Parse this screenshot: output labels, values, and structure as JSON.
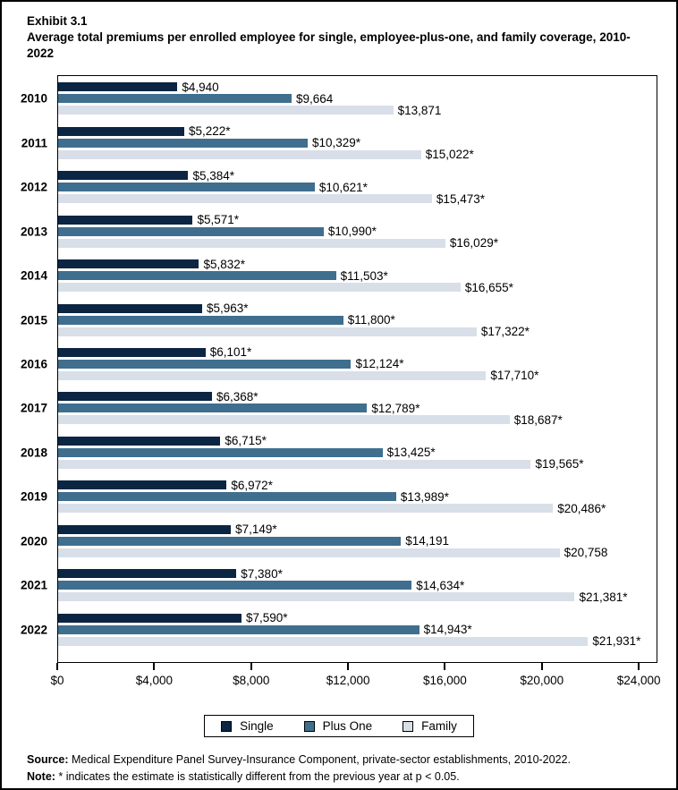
{
  "title": {
    "exhibit": "Exhibit 3.1",
    "text": "Average total premiums per enrolled employee for single, employee-plus-one, and family coverage, 2010-2022"
  },
  "chart_data": {
    "type": "bar",
    "orientation": "horizontal",
    "title": "Average total premiums per enrolled employee for single, employee-plus-one, and family coverage, 2010-2022",
    "categories": [
      "2010",
      "2011",
      "2012",
      "2013",
      "2014",
      "2015",
      "2016",
      "2017",
      "2018",
      "2019",
      "2020",
      "2021",
      "2022"
    ],
    "series": [
      {
        "name": "Single",
        "color": "#0b2543",
        "values": [
          4940,
          5222,
          5384,
          5571,
          5832,
          5963,
          6101,
          6368,
          6715,
          6972,
          7149,
          7380,
          7590
        ],
        "labels": [
          "$4,940",
          "$5,222*",
          "$5,384*",
          "$5,571*",
          "$5,832*",
          "$5,963*",
          "$6,101*",
          "$6,368*",
          "$6,715*",
          "$6,972*",
          "$7,149*",
          "$7,380*",
          "$7,590*"
        ]
      },
      {
        "name": "Plus One",
        "color": "#406e8e",
        "values": [
          9664,
          10329,
          10621,
          10990,
          11503,
          11800,
          12124,
          12789,
          13425,
          13989,
          14191,
          14634,
          14943
        ],
        "labels": [
          "$9,664",
          "$10,329*",
          "$10,621*",
          "$10,990*",
          "$11,503*",
          "$11,800*",
          "$12,124*",
          "$12,789*",
          "$13,425*",
          "$13,989*",
          "$14,191",
          "$14,634*",
          "$14,943*"
        ]
      },
      {
        "name": "Family",
        "color": "#d8dfe8",
        "values": [
          13871,
          15022,
          15473,
          16029,
          16655,
          17322,
          17710,
          18687,
          19565,
          20486,
          20758,
          21381,
          21931
        ],
        "labels": [
          "$13,871",
          "$15,022*",
          "$15,473*",
          "$16,029*",
          "$16,655*",
          "$17,322*",
          "$17,710*",
          "$18,687*",
          "$19,565*",
          "$20,486*",
          "$20,758",
          "$21,381*",
          "$21,931*"
        ]
      }
    ],
    "xlim": [
      0,
      24770
    ],
    "x_ticks": {
      "values": [
        0,
        4000,
        8000,
        12000,
        16000,
        20000,
        24000
      ],
      "labels": [
        "$0",
        "$4,000",
        "$8,000",
        "$12,000",
        "$16,000",
        "$20,000",
        "$24,000"
      ]
    },
    "grid": false,
    "legend_position": "bottom",
    "legend_entries": [
      "Single",
      "Plus One",
      "Family"
    ]
  },
  "footer": {
    "source_label": "Source:",
    "source_text": " Medical Expenditure Panel Survey-Insurance Component, private-sector establishments, 2010-2022.",
    "note_label": "Note:",
    "note_text": " * indicates the estimate is statistically different from the previous year at p < 0.05."
  }
}
